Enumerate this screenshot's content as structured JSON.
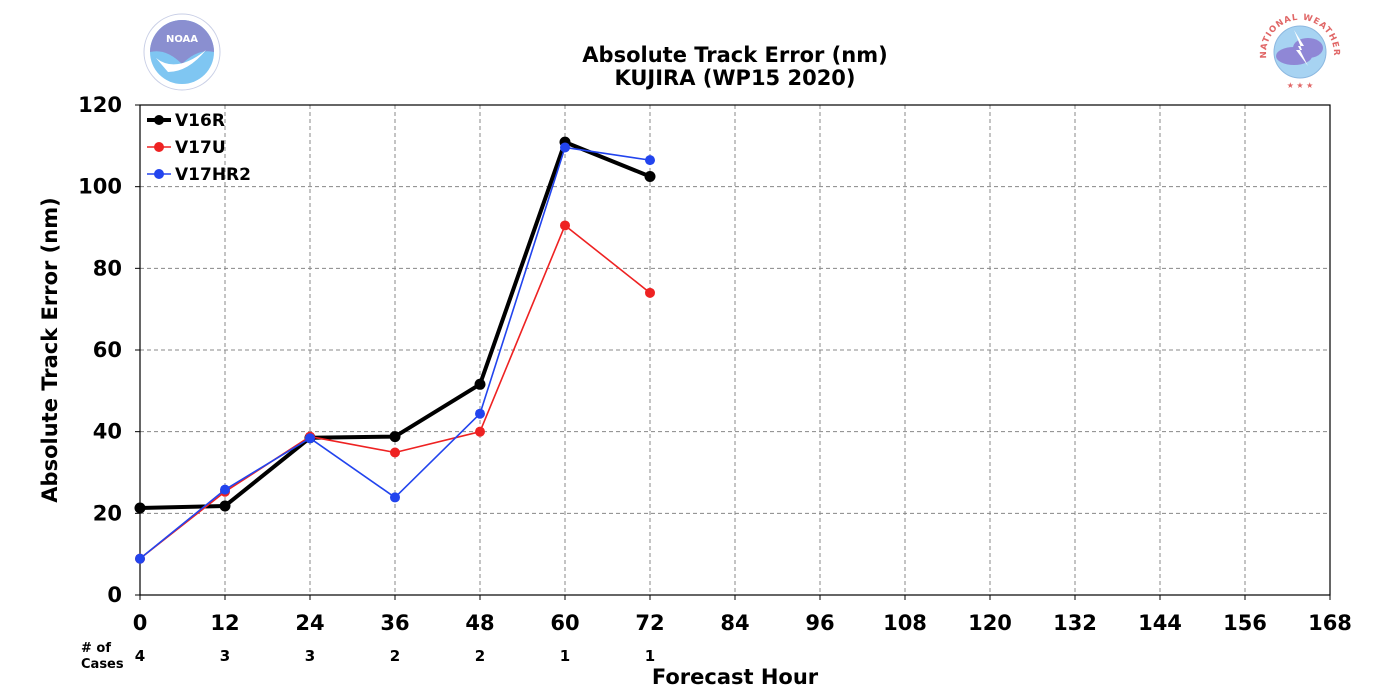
{
  "chart_data": {
    "type": "line",
    "title": "Absolute Track Error (nm)",
    "subtitle": "KUJIRA (WP15 2020)",
    "xlabel": "Forecast Hour",
    "ylabel": "Absolute Track Error (nm)",
    "xlim": [
      0,
      168
    ],
    "ylim": [
      0,
      120
    ],
    "x_ticks": [
      0,
      12,
      24,
      36,
      48,
      60,
      72,
      84,
      96,
      108,
      120,
      132,
      144,
      156,
      168
    ],
    "y_ticks": [
      0,
      20,
      40,
      60,
      80,
      100,
      120
    ],
    "grid": true,
    "legend_position": "top-left",
    "series": [
      {
        "name": "V16R",
        "color": "#000000",
        "x": [
          0,
          12,
          24,
          36,
          48,
          60,
          72
        ],
        "y": [
          21.3,
          21.8,
          38.5,
          38.8,
          51.6,
          110.9,
          102.5
        ]
      },
      {
        "name": "V17U",
        "color": "#ee2222",
        "x": [
          0,
          12,
          24,
          36,
          48,
          60,
          72
        ],
        "y": [
          8.9,
          25.3,
          38.8,
          34.9,
          40.0,
          90.5,
          74.0
        ]
      },
      {
        "name": "V17HR2",
        "color": "#2244ee",
        "x": [
          0,
          12,
          24,
          36,
          48,
          60,
          72
        ],
        "y": [
          8.9,
          25.8,
          38.4,
          23.9,
          44.4,
          109.6,
          106.5
        ]
      }
    ],
    "cases_label": "# of\nCases",
    "cases": [
      {
        "x": 0,
        "n": "4"
      },
      {
        "x": 12,
        "n": "3"
      },
      {
        "x": 24,
        "n": "3"
      },
      {
        "x": 36,
        "n": "2"
      },
      {
        "x": 48,
        "n": "2"
      },
      {
        "x": 60,
        "n": "1"
      },
      {
        "x": 72,
        "n": "1"
      }
    ]
  },
  "logos": {
    "left": {
      "text": "NOAA",
      "color": "#6fa8dc"
    },
    "right": {
      "text": "NATIONAL WEATHER SERVICE",
      "color": "#e06666"
    }
  }
}
